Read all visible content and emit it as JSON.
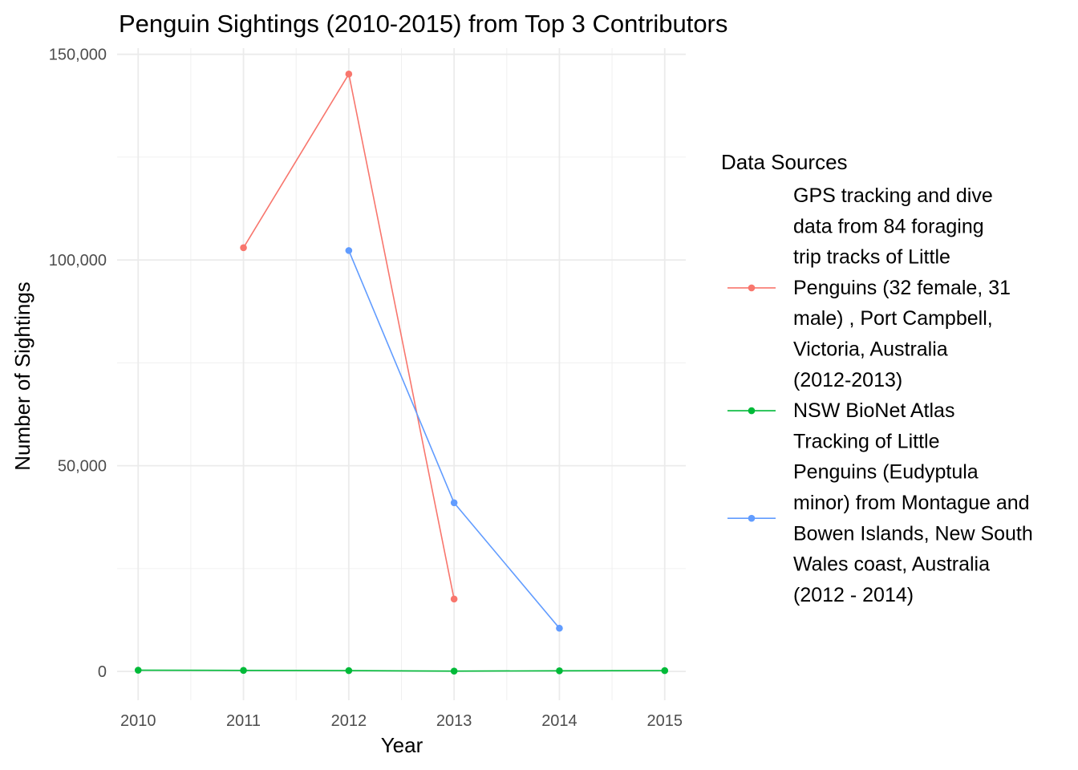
{
  "chart_data": {
    "type": "line",
    "title": "Penguin Sightings (2010-2015) from Top 3 Contributors",
    "xlabel": "Year",
    "ylabel": "Number of Sightings",
    "xlim": [
      2009.8,
      2015.2
    ],
    "ylim": [
      -7000,
      151500
    ],
    "x_ticks": [
      2010,
      2011,
      2012,
      2013,
      2014,
      2015
    ],
    "x_tick_labels": [
      "2010",
      "2011",
      "2012",
      "2013",
      "2014",
      "2015"
    ],
    "y_ticks": [
      0,
      50000,
      100000,
      150000
    ],
    "y_tick_labels": [
      "0",
      "50,000",
      "100,000",
      "150,000"
    ],
    "y_minor_ticks": [
      25000,
      75000,
      125000
    ],
    "grid": true,
    "legend": {
      "title": "Data Sources",
      "position": "right"
    },
    "series": [
      {
        "name": "GPS tracking and dive data from 84 foraging trip tracks of Little Penguins (32 female, 31 male) , Port Campbell, Victoria, Australia (2012-2013)",
        "label_lines": [
          "GPS tracking and dive",
          "data from 84 foraging",
          "trip tracks of Little",
          "Penguins (32 female, 31",
          "male) , Port Campbell,",
          "Victoria, Australia",
          "(2012-2013)"
        ],
        "color": "#F8766D",
        "x": [
          2011,
          2012,
          2013
        ],
        "values": [
          103000,
          145200,
          17600
        ]
      },
      {
        "name": "NSW BioNet Atlas",
        "label_lines": [
          "NSW BioNet Atlas"
        ],
        "color": "#00BA38",
        "x": [
          2010,
          2011,
          2012,
          2013,
          2014,
          2015
        ],
        "values": [
          300,
          250,
          200,
          80,
          150,
          200
        ]
      },
      {
        "name": "Tracking of Little Penguins (Eudyptula minor) from Montague and Bowen Islands, New South Wales coast, Australia (2012 - 2014)",
        "label_lines": [
          "Tracking of Little",
          "Penguins (Eudyptula",
          "minor) from Montague and",
          "Bowen Islands, New South",
          "Wales coast, Australia",
          "(2012 - 2014)"
        ],
        "color": "#619CFF",
        "x": [
          2012,
          2013,
          2014
        ],
        "values": [
          102300,
          41000,
          10500
        ]
      }
    ]
  }
}
